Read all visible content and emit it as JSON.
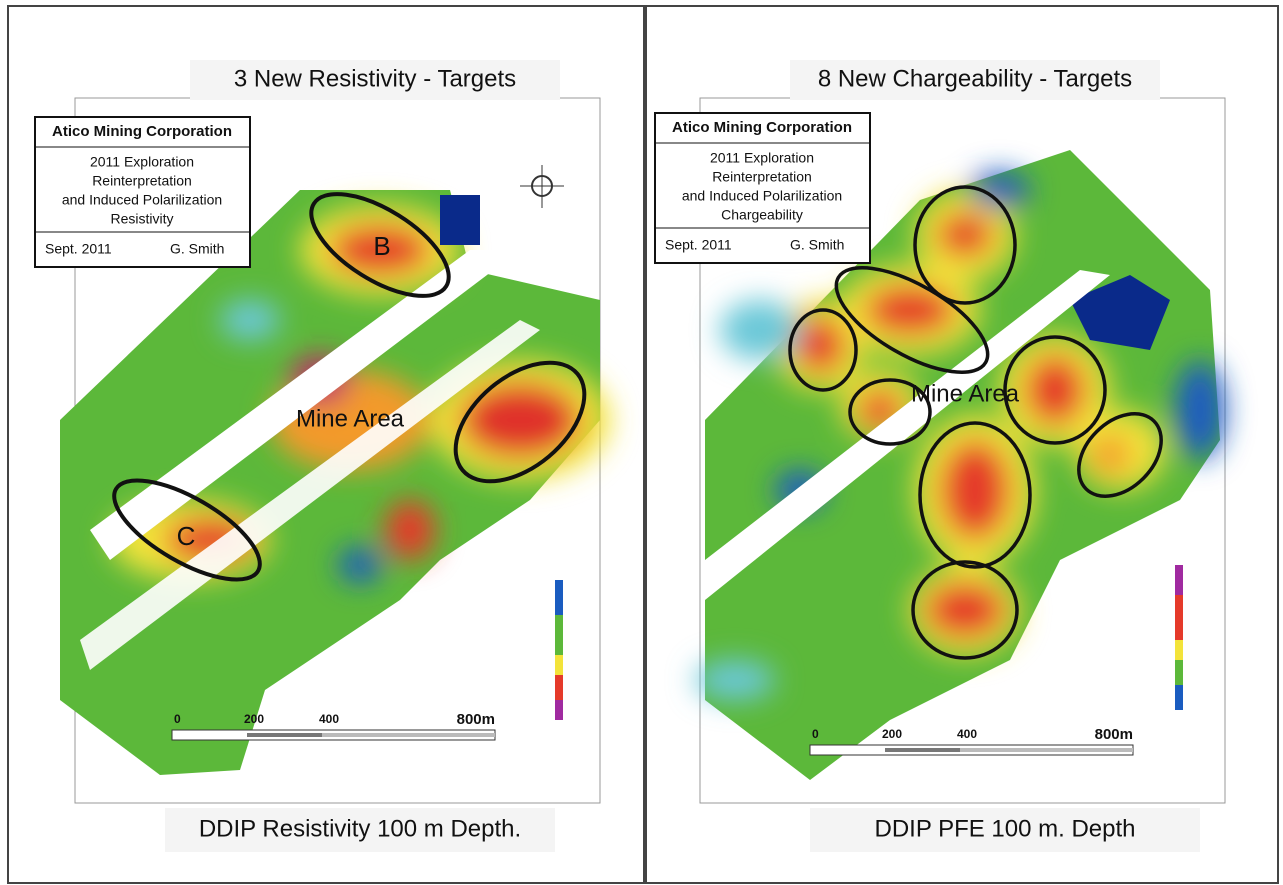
{
  "panels": [
    {
      "title": "3 New Resistivity - Targets",
      "info_box": {
        "company": "Atico Mining Corporation",
        "lines": [
          "2011 Exploration",
          "Reinterpretation",
          "and Induced Polarilization",
          "Resistivity"
        ],
        "date": "Sept. 2011",
        "author": "G. Smith"
      },
      "map_labels": [
        "B",
        "C",
        "Mine Area"
      ],
      "scale_bar": [
        "0",
        "200",
        "400",
        "800m"
      ],
      "caption": "DDIP Resistivity 100 m Depth."
    },
    {
      "title": "8 New Chargeability - Targets",
      "info_box": {
        "company": "Atico Mining Corporation",
        "lines": [
          "2011 Exploration",
          "Reinterpretation",
          "and Induced Polarilization",
          "Chargeability"
        ],
        "date": "Sept. 2011",
        "author": "G. Smith"
      },
      "map_labels": [
        "Mine Area"
      ],
      "scale_bar": [
        "0",
        "200",
        "400",
        "800m"
      ],
      "caption": "DDIP PFE 100 m. Depth"
    }
  ]
}
